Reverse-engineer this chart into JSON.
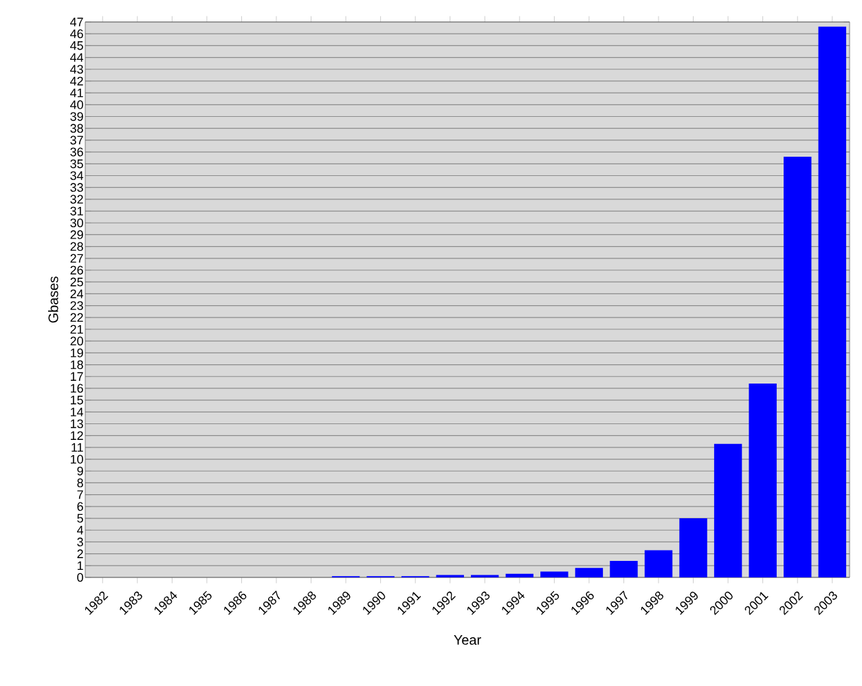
{
  "chart_data": {
    "type": "bar",
    "xlabel": "Year",
    "ylabel": "Gbases",
    "categories": [
      "1982",
      "1983",
      "1984",
      "1985",
      "1986",
      "1987",
      "1988",
      "1989",
      "1990",
      "1991",
      "1992",
      "1993",
      "1994",
      "1995",
      "1996",
      "1997",
      "1998",
      "1999",
      "2000",
      "2001",
      "2002",
      "2003"
    ],
    "values": [
      0.0,
      0.0,
      0.0,
      0.0,
      0.0,
      0.0,
      0.0,
      0.1,
      0.1,
      0.1,
      0.2,
      0.2,
      0.3,
      0.5,
      0.8,
      1.4,
      2.3,
      5.0,
      11.3,
      16.4,
      35.6,
      46.6
    ],
    "color": "#0000ff",
    "ylim": [
      0,
      47
    ],
    "yticks": [
      0,
      1,
      2,
      3,
      4,
      5,
      6,
      7,
      8,
      9,
      10,
      11,
      12,
      13,
      14,
      15,
      16,
      17,
      18,
      19,
      20,
      21,
      22,
      23,
      24,
      25,
      26,
      27,
      28,
      29,
      30,
      31,
      32,
      33,
      34,
      35,
      36,
      37,
      38,
      39,
      40,
      41,
      42,
      43,
      44,
      45,
      46,
      47
    ],
    "grid": "y"
  }
}
